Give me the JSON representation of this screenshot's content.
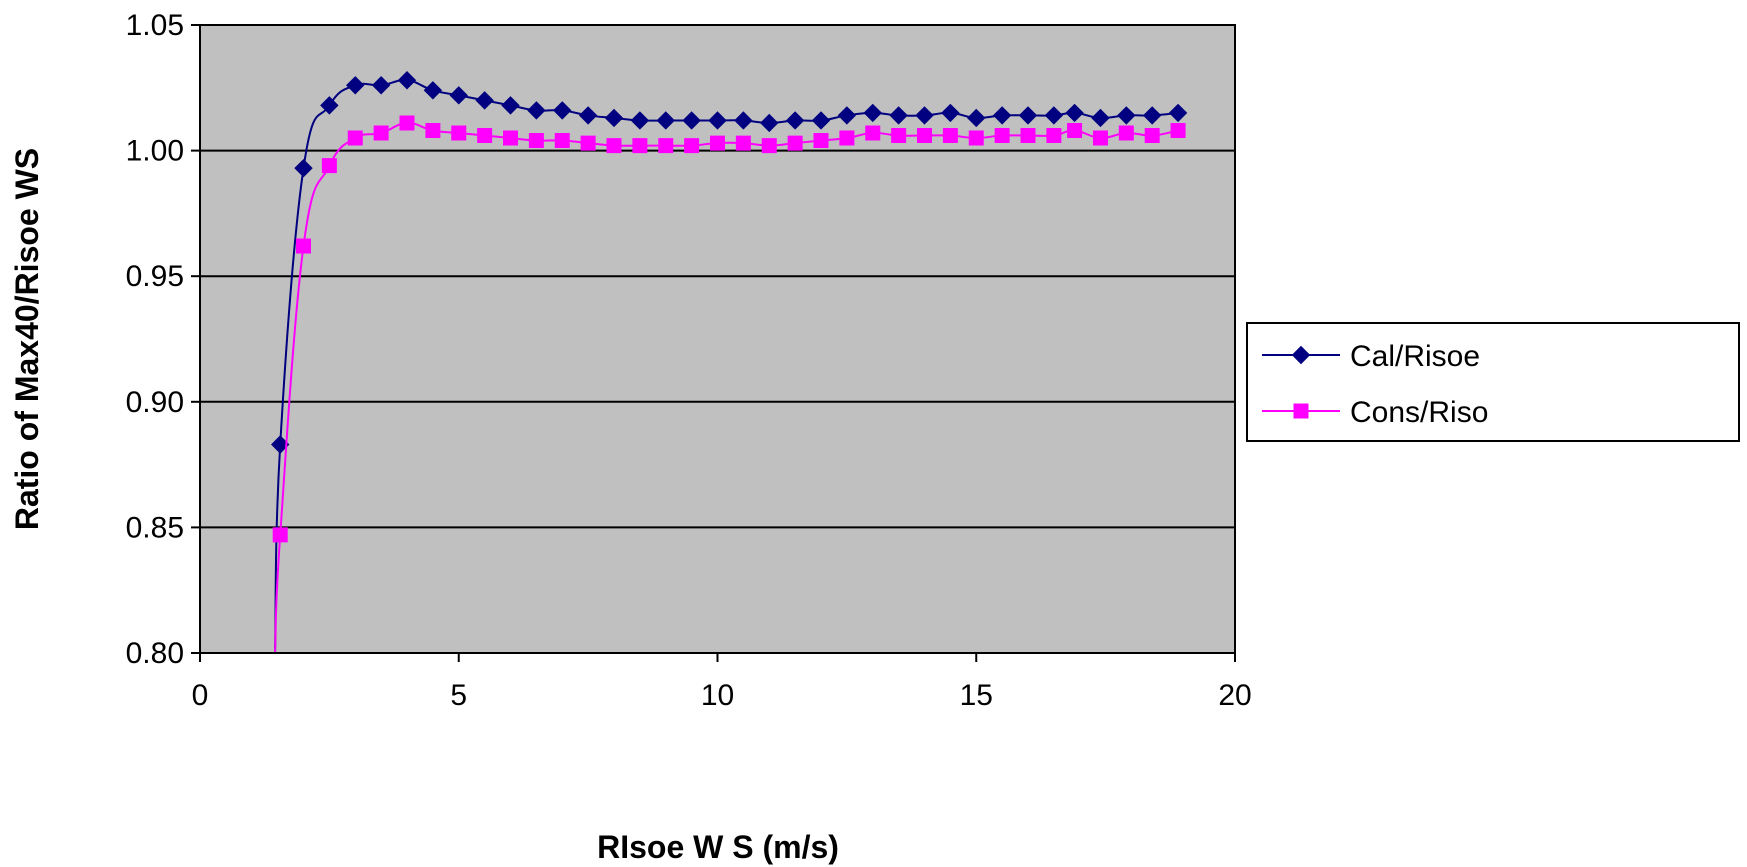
{
  "chart_data": {
    "type": "line",
    "title": "",
    "xlabel": "RIsoe W S  (m/s)",
    "ylabel": "Ratio of Max40/Risoe WS",
    "xlim": [
      0,
      20
    ],
    "ylim": [
      0.8,
      1.05
    ],
    "x_ticks": [
      0,
      5,
      10,
      15,
      20
    ],
    "y_ticks": [
      0.8,
      0.85,
      0.9,
      0.95,
      1.0,
      1.05
    ],
    "y_tick_labels": [
      "0.80",
      "0.85",
      "0.90",
      "0.95",
      "1.00",
      "1.05"
    ],
    "grid": "horizontal",
    "plot_background": "#c0c0c0",
    "legend_position": "right",
    "series": [
      {
        "name": "Cal/Risoe",
        "color": "#000080",
        "marker": "diamond",
        "x": [
          1.45,
          1.55,
          2.0,
          2.5,
          3.0,
          3.5,
          4.0,
          4.5,
          5.0,
          5.5,
          6.0,
          6.5,
          7.0,
          7.5,
          8.0,
          8.5,
          9.0,
          9.5,
          10.0,
          10.5,
          11.0,
          11.5,
          12.0,
          12.5,
          13.0,
          13.5,
          14.0,
          14.5,
          15.0,
          15.5,
          16.0,
          16.5,
          16.9,
          17.4,
          17.9,
          18.4,
          18.9
        ],
        "y": [
          0.8,
          0.883,
          0.993,
          1.018,
          1.026,
          1.026,
          1.028,
          1.024,
          1.022,
          1.02,
          1.018,
          1.016,
          1.016,
          1.014,
          1.013,
          1.012,
          1.012,
          1.012,
          1.012,
          1.012,
          1.011,
          1.012,
          1.012,
          1.014,
          1.015,
          1.014,
          1.014,
          1.015,
          1.013,
          1.014,
          1.014,
          1.014,
          1.015,
          1.013,
          1.014,
          1.014,
          1.015
        ],
        "markers_from_index": 1
      },
      {
        "name": "Cons/Riso",
        "color": "#ff00ff",
        "marker": "square",
        "x": [
          1.45,
          1.55,
          2.0,
          2.5,
          3.0,
          3.5,
          4.0,
          4.5,
          5.0,
          5.5,
          6.0,
          6.5,
          7.0,
          7.5,
          8.0,
          8.5,
          9.0,
          9.5,
          10.0,
          10.5,
          11.0,
          11.5,
          12.0,
          12.5,
          13.0,
          13.5,
          14.0,
          14.5,
          15.0,
          15.5,
          16.0,
          16.5,
          16.9,
          17.4,
          17.9,
          18.4,
          18.9
        ],
        "y": [
          0.8,
          0.847,
          0.962,
          0.994,
          1.005,
          1.007,
          1.011,
          1.008,
          1.007,
          1.006,
          1.005,
          1.004,
          1.004,
          1.003,
          1.002,
          1.002,
          1.002,
          1.002,
          1.003,
          1.003,
          1.002,
          1.003,
          1.004,
          1.005,
          1.007,
          1.006,
          1.006,
          1.006,
          1.005,
          1.006,
          1.006,
          1.006,
          1.008,
          1.005,
          1.007,
          1.006,
          1.008
        ],
        "markers_from_index": 1
      }
    ]
  }
}
